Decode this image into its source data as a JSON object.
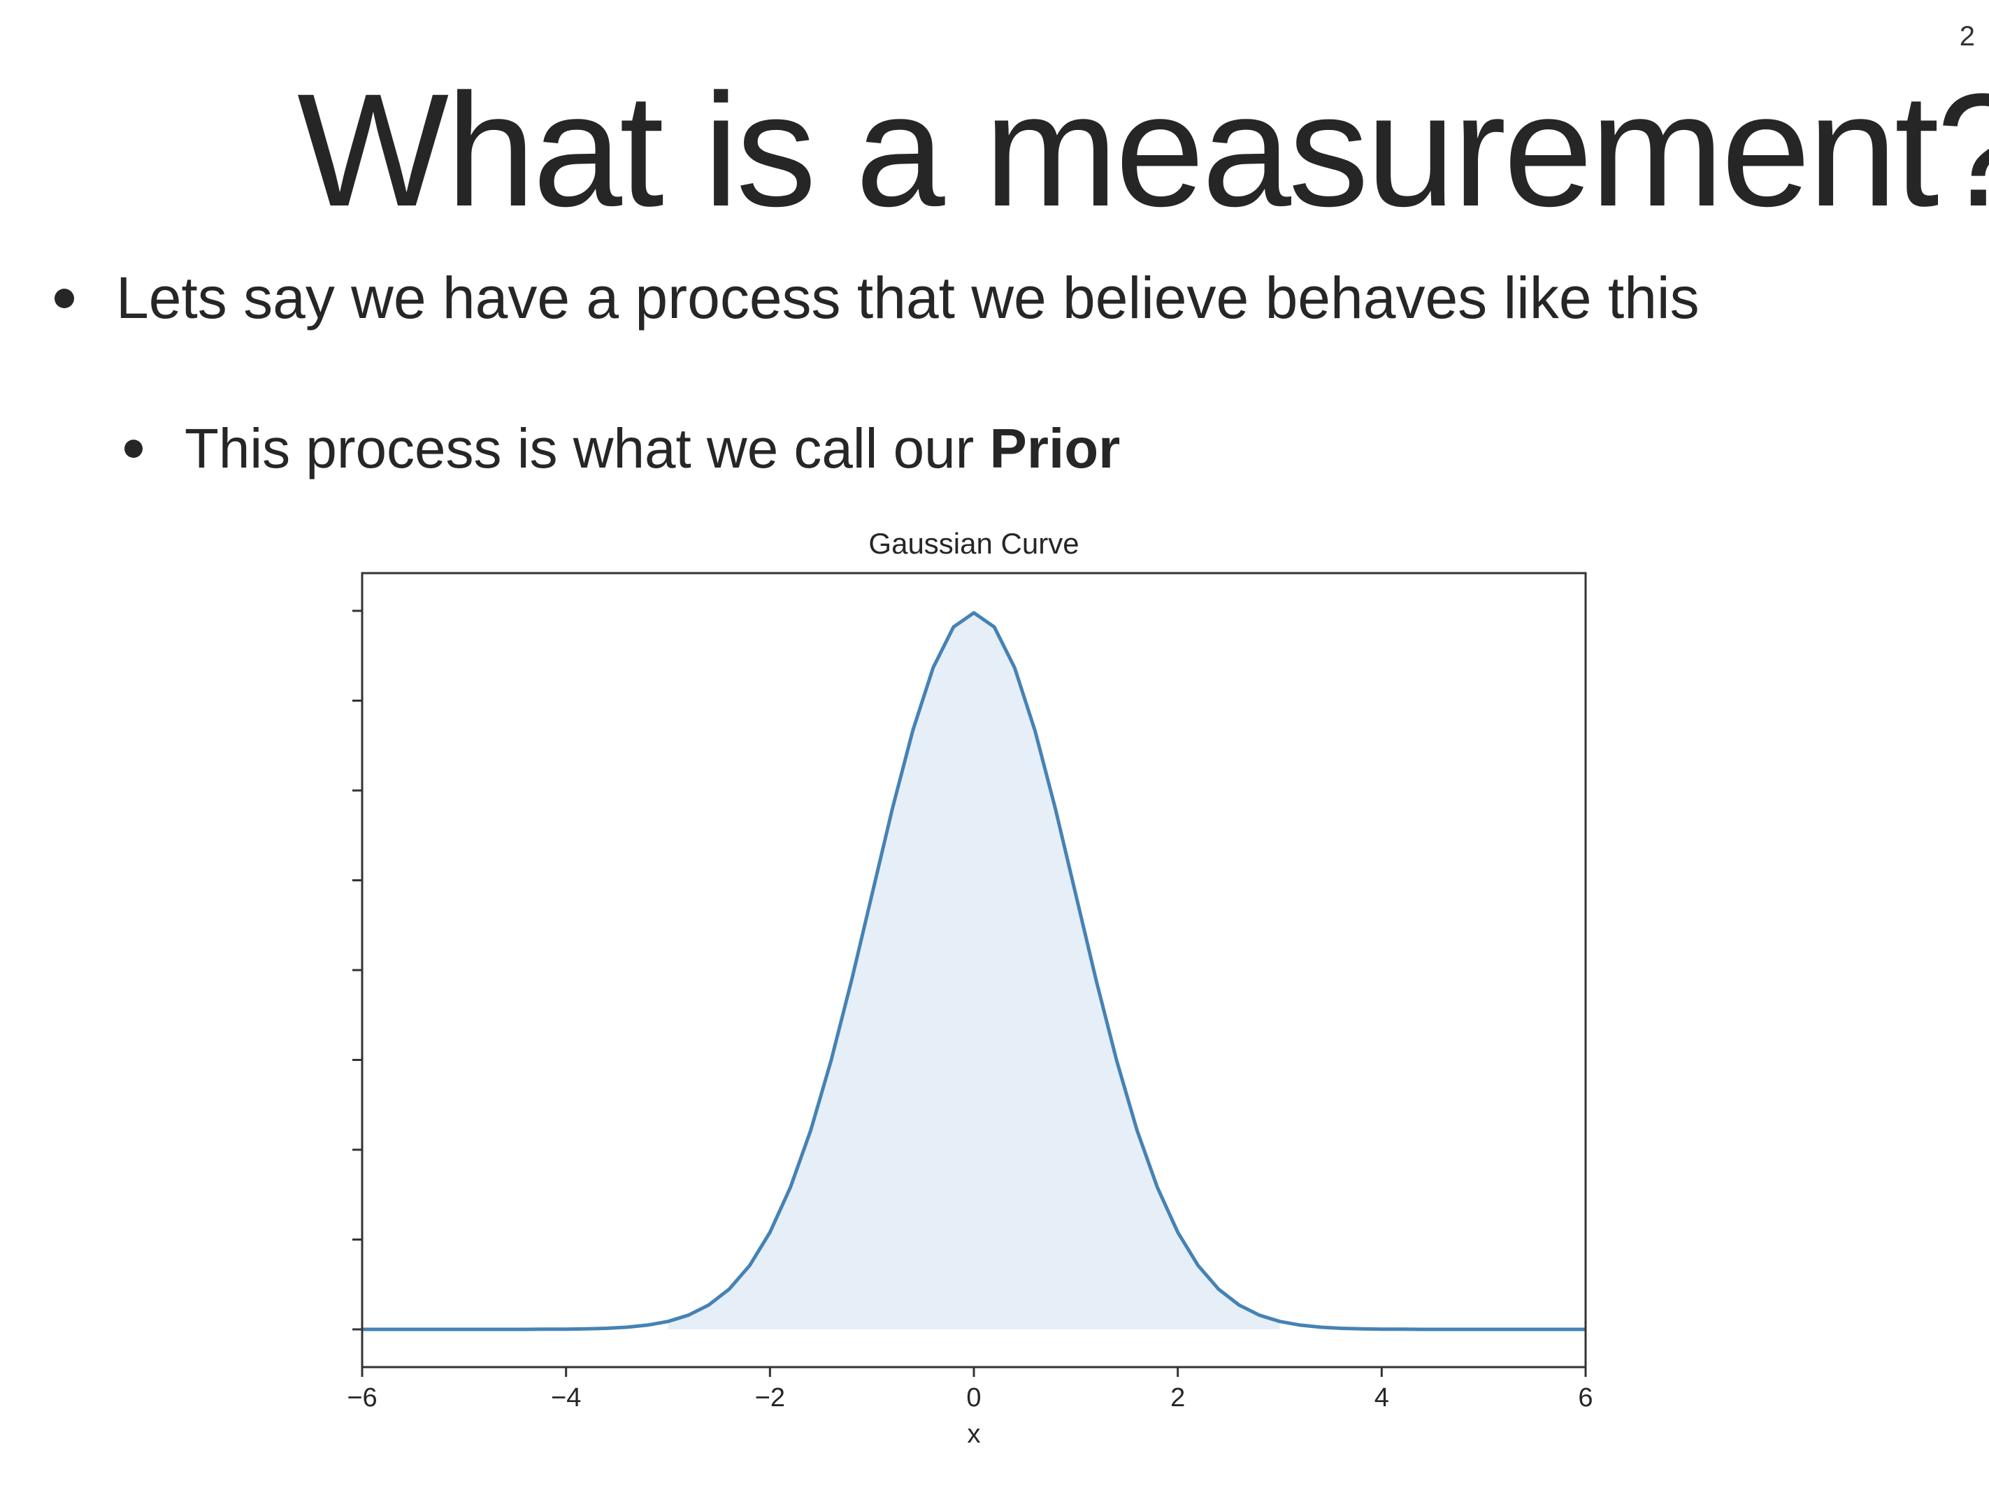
{
  "page": {
    "number": "2"
  },
  "slide": {
    "title": "What is a measurement?",
    "bullets": [
      {
        "text": "Lets say we have a process that we believe behaves like this"
      },
      {
        "text": "This process is what we call our ",
        "bold": "Prior"
      }
    ]
  },
  "colors": {
    "line": "#4682b4",
    "fill": "#e6eff8",
    "axis": "#333333",
    "text": "#262626"
  },
  "chart_data": {
    "type": "area",
    "title": "Gaussian Curve",
    "xlabel": "x",
    "ylabel": "",
    "xlim": [
      -6,
      6
    ],
    "ylim": [
      -0.021,
      0.421
    ],
    "xticks": [
      -6,
      -4,
      -2,
      0,
      2,
      4,
      6
    ],
    "xtick_labels": [
      "−6",
      "−4",
      "−2",
      "0",
      "2",
      "4",
      "6"
    ],
    "yticks": [
      0,
      0.05,
      0.1,
      0.15,
      0.2,
      0.25,
      0.3,
      0.35,
      0.4
    ],
    "ytick_labels_visible": false,
    "grid": false,
    "fill_range": [
      -3,
      3
    ],
    "series": [
      {
        "x": [
          -6.0,
          -5.8,
          -5.6,
          -5.4,
          -5.2,
          -5.0,
          -4.8,
          -4.6,
          -4.4,
          -4.2,
          -4.0,
          -3.8,
          -3.6,
          -3.4,
          -3.2,
          -3.0,
          -2.8,
          -2.6,
          -2.4,
          -2.2,
          -2.0,
          -1.8,
          -1.6,
          -1.4,
          -1.2,
          -1.0,
          -0.8,
          -0.6,
          -0.4,
          -0.2,
          0.0,
          0.2,
          0.4,
          0.6,
          0.8,
          1.0,
          1.2,
          1.4,
          1.6,
          1.8,
          2.0,
          2.2,
          2.4,
          2.6,
          2.8,
          3.0,
          3.2,
          3.4,
          3.6,
          3.8,
          4.0,
          4.2,
          4.4,
          4.6,
          4.8,
          5.0,
          5.2,
          5.4,
          5.6,
          5.8,
          6.0
        ],
        "y": [
          0.0,
          0.0,
          0.0,
          0.0,
          0.0,
          0.0,
          0.0,
          0.0,
          0.0,
          0.0001,
          0.0001,
          0.0003,
          0.0006,
          0.0012,
          0.0024,
          0.0044,
          0.0079,
          0.0136,
          0.0224,
          0.0355,
          0.054,
          0.079,
          0.1109,
          0.1497,
          0.1942,
          0.242,
          0.2897,
          0.3332,
          0.3683,
          0.391,
          0.3989,
          0.391,
          0.3683,
          0.3332,
          0.2897,
          0.242,
          0.1942,
          0.1497,
          0.1109,
          0.079,
          0.054,
          0.0355,
          0.0224,
          0.0136,
          0.0079,
          0.0044,
          0.0024,
          0.0012,
          0.0006,
          0.0003,
          0.0001,
          0.0001,
          0.0,
          0.0,
          0.0,
          0.0,
          0.0,
          0.0,
          0.0,
          0.0,
          0.0
        ]
      }
    ]
  }
}
